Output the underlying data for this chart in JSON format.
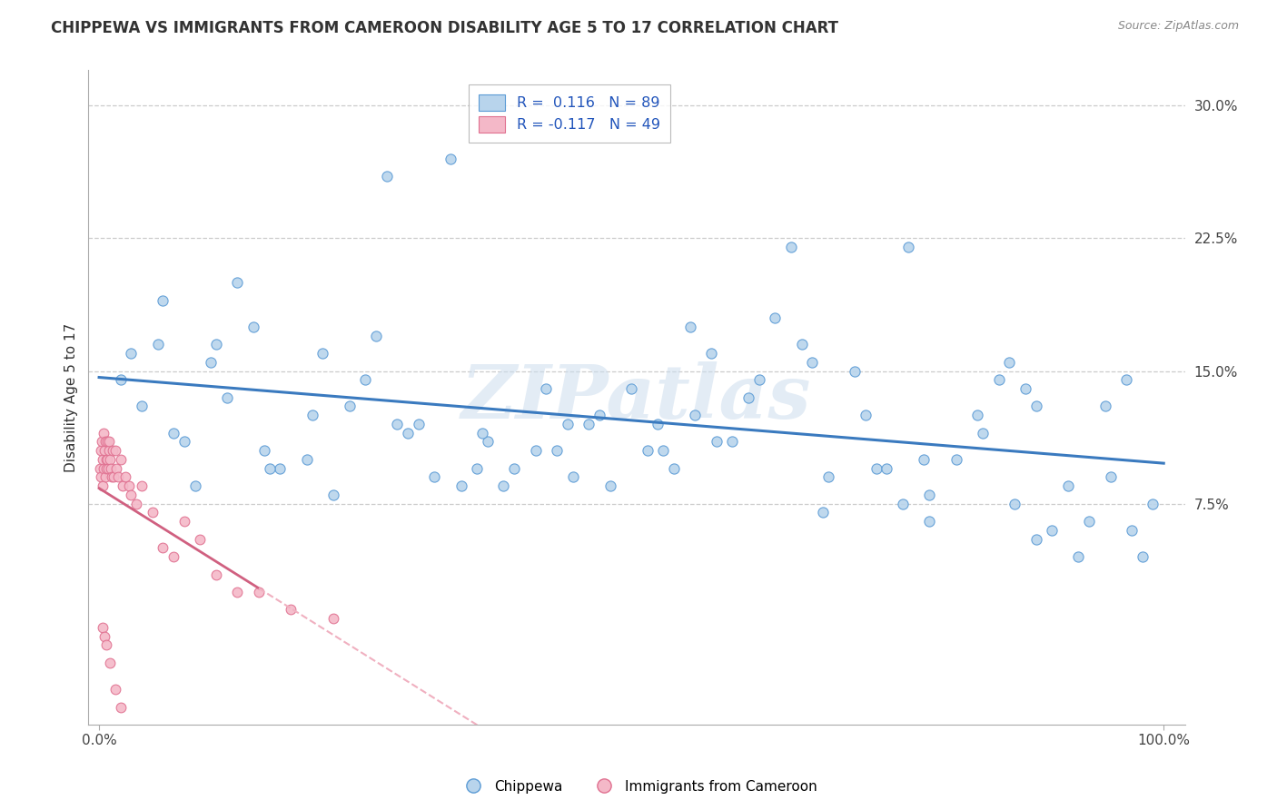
{
  "title": "CHIPPEWA VS IMMIGRANTS FROM CAMEROON DISABILITY AGE 5 TO 17 CORRELATION CHART",
  "source": "Source: ZipAtlas.com",
  "ylabel": "Disability Age 5 to 17",
  "blue_color": "#b8d4ec",
  "blue_edge_color": "#5b9bd5",
  "pink_color": "#f4b8c8",
  "pink_edge_color": "#e07090",
  "blue_line_color": "#3a7abf",
  "pink_line_color": "#d06080",
  "pink_dash_color": "#f0b0c0",
  "legend_blue_text": "R =  0.116   N = 89",
  "legend_pink_text": "R = -0.117   N = 49",
  "watermark": "ZIPatlas",
  "background_color": "#ffffff",
  "ytick_vals": [
    0,
    7.5,
    15.0,
    22.5,
    30.0
  ],
  "ytick_labels": [
    "",
    "7.5%",
    "15.0%",
    "22.5%",
    "30.0%"
  ],
  "blue_x": [
    2.0,
    5.5,
    8.0,
    10.5,
    12.0,
    14.5,
    17.0,
    19.5,
    21.0,
    23.5,
    26.0,
    29.0,
    31.5,
    34.0,
    36.5,
    39.0,
    42.0,
    44.5,
    47.0,
    50.0,
    53.0,
    55.5,
    57.5,
    59.5,
    62.0,
    63.5,
    66.0,
    68.5,
    71.0,
    73.0,
    75.5,
    78.0,
    80.5,
    83.0,
    85.5,
    87.0,
    89.5,
    92.0,
    94.5,
    96.5,
    99.0,
    4.0,
    7.0,
    11.0,
    15.5,
    20.0,
    25.0,
    30.0,
    35.5,
    41.0,
    46.0,
    51.5,
    56.0,
    61.0,
    67.0,
    72.0,
    77.5,
    82.5,
    88.0,
    93.0,
    3.0,
    9.0,
    16.0,
    22.0,
    28.0,
    38.0,
    48.0,
    58.0,
    68.0,
    78.0,
    88.0,
    98.0,
    6.0,
    13.0,
    27.0,
    33.0,
    54.0,
    74.0,
    84.5,
    91.0,
    95.0,
    52.5,
    43.0,
    65.0,
    76.0,
    86.0,
    97.0,
    36.0,
    44.0
  ],
  "blue_y": [
    14.5,
    16.5,
    11.0,
    15.5,
    13.5,
    17.5,
    9.5,
    10.0,
    16.0,
    13.0,
    17.0,
    11.5,
    9.0,
    8.5,
    11.0,
    9.5,
    14.0,
    9.0,
    12.5,
    14.0,
    10.5,
    17.5,
    16.0,
    11.0,
    14.5,
    18.0,
    16.5,
    9.0,
    15.0,
    9.5,
    7.5,
    8.0,
    10.0,
    11.5,
    15.5,
    14.0,
    6.0,
    4.5,
    13.0,
    14.5,
    7.5,
    13.0,
    11.5,
    16.5,
    10.5,
    12.5,
    14.5,
    12.0,
    9.5,
    10.5,
    12.0,
    10.5,
    12.5,
    13.5,
    15.5,
    12.5,
    10.0,
    12.5,
    13.0,
    6.5,
    16.0,
    8.5,
    9.5,
    8.0,
    12.0,
    8.5,
    8.5,
    11.0,
    7.0,
    6.5,
    5.5,
    4.5,
    19.0,
    20.0,
    26.0,
    27.0,
    9.5,
    9.5,
    14.5,
    8.5,
    9.0,
    12.0,
    10.5,
    22.0,
    22.0,
    7.5,
    6.0,
    11.5,
    12.0
  ],
  "pink_x": [
    0.1,
    0.15,
    0.2,
    0.25,
    0.3,
    0.35,
    0.4,
    0.45,
    0.5,
    0.55,
    0.6,
    0.65,
    0.7,
    0.75,
    0.8,
    0.85,
    0.9,
    0.95,
    1.0,
    1.1,
    1.2,
    1.3,
    1.4,
    1.5,
    1.6,
    1.8,
    2.0,
    2.2,
    2.5,
    2.8,
    3.0,
    3.5,
    4.0,
    5.0,
    6.0,
    7.0,
    8.0,
    9.5,
    11.0,
    13.0,
    15.0,
    18.0,
    22.0,
    0.3,
    0.5,
    0.7,
    1.0,
    1.5,
    2.0
  ],
  "pink_y": [
    9.5,
    10.5,
    9.0,
    11.0,
    8.5,
    10.0,
    9.5,
    11.5,
    10.5,
    9.0,
    11.0,
    10.0,
    9.5,
    11.0,
    10.0,
    9.5,
    10.5,
    11.0,
    10.0,
    9.5,
    9.0,
    10.5,
    9.0,
    10.5,
    9.5,
    9.0,
    10.0,
    8.5,
    9.0,
    8.5,
    8.0,
    7.5,
    8.5,
    7.0,
    5.0,
    4.5,
    6.5,
    5.5,
    3.5,
    2.5,
    2.5,
    1.5,
    1.0,
    0.5,
    0.0,
    -0.5,
    -1.5,
    -3.0,
    -4.0
  ]
}
